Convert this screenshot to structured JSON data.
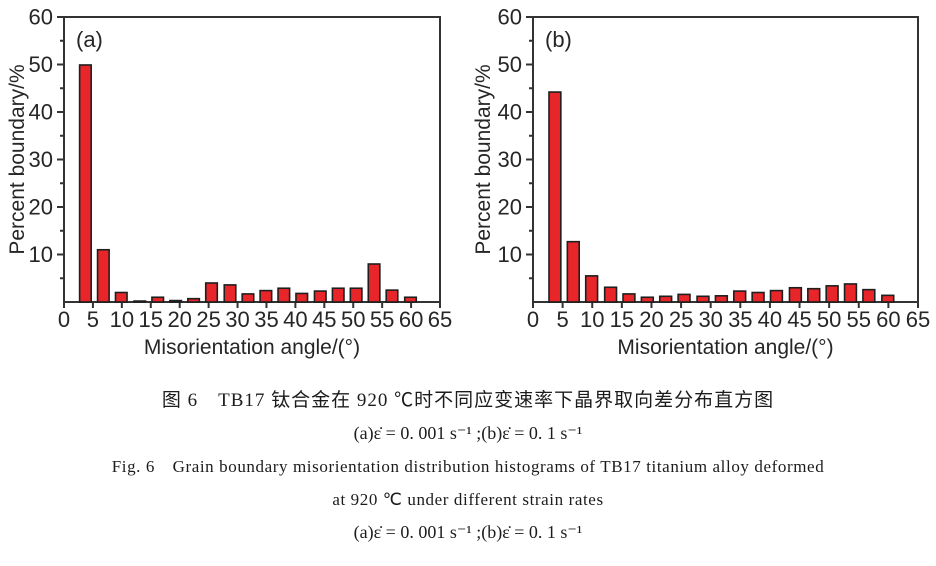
{
  "page": {
    "background": "#ffffff"
  },
  "colors": {
    "bar_fill": "#e8262a",
    "bar_stroke": "#1f1f1f",
    "axis": "#333333",
    "text": "#262626"
  },
  "caption": {
    "zh_title": "图 6　TB17 钛合金在 920 ℃时不同应变速率下晶界取向差分布直方图",
    "zh_conditions": "(a)ε̇ = 0. 001 s⁻¹ ;(b)ε̇ = 0. 1 s⁻¹",
    "en_line1": "Fig. 6　Grain boundary misorientation distribution histograms of TB17 titanium alloy deformed",
    "en_line2": "at 920 ℃ under different strain rates",
    "en_conditions": "(a)ε̇ = 0. 001 s⁻¹ ;(b)ε̇ = 0. 1 s⁻¹"
  },
  "chart_data": [
    {
      "type": "bar",
      "panel": "a",
      "panel_label": "(a)",
      "strain_rate": "ε̇ = 0.001 s⁻¹",
      "xlabel": "Misorientation angle/(°)",
      "ylabel": "Percent boundary/%",
      "xlim": [
        0,
        65
      ],
      "ylim": [
        0,
        60
      ],
      "x_ticks": [
        0,
        5,
        10,
        15,
        20,
        25,
        30,
        35,
        40,
        45,
        50,
        55,
        60,
        65
      ],
      "y_ticks": [
        10,
        20,
        30,
        40,
        50,
        60
      ],
      "y_minor_step": 5,
      "grid": false,
      "bar_width_deg": 2.0,
      "bin_centers": [
        3.7,
        6.8,
        9.9,
        13.1,
        16.2,
        19.3,
        22.4,
        25.5,
        28.7,
        31.8,
        34.9,
        38.0,
        41.1,
        44.3,
        47.4,
        50.5,
        53.6,
        56.7,
        59.9
      ],
      "values": [
        49.9,
        11.0,
        2.0,
        0.2,
        1.0,
        0.3,
        0.7,
        4.0,
        3.6,
        1.7,
        2.4,
        2.9,
        1.8,
        2.3,
        2.9,
        2.9,
        8.0,
        2.5,
        1.0
      ]
    },
    {
      "type": "bar",
      "panel": "b",
      "panel_label": "(b)",
      "strain_rate": "ε̇ = 0.1 s⁻¹",
      "xlabel": "Misorientation angle/(°)",
      "ylabel": "Percent boundary/%",
      "xlim": [
        0,
        65
      ],
      "ylim": [
        0,
        60
      ],
      "x_ticks": [
        0,
        5,
        10,
        15,
        20,
        25,
        30,
        35,
        40,
        45,
        50,
        55,
        60,
        65
      ],
      "y_ticks": [
        10,
        20,
        30,
        40,
        50,
        60
      ],
      "y_minor_step": 5,
      "grid": false,
      "bar_width_deg": 2.0,
      "bin_centers": [
        3.7,
        6.8,
        9.9,
        13.1,
        16.2,
        19.3,
        22.4,
        25.5,
        28.7,
        31.8,
        34.9,
        38.0,
        41.1,
        44.3,
        47.4,
        50.5,
        53.6,
        56.7,
        59.9
      ],
      "values": [
        44.2,
        12.7,
        5.5,
        3.1,
        1.7,
        1.0,
        1.2,
        1.6,
        1.2,
        1.3,
        2.3,
        2.0,
        2.4,
        3.0,
        2.8,
        3.4,
        3.8,
        2.6,
        1.4
      ]
    }
  ]
}
